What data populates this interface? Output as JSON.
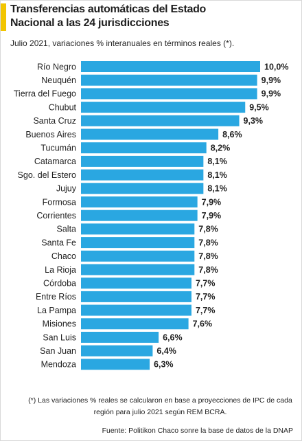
{
  "chart_data": {
    "type": "bar",
    "orientation": "horizontal",
    "title": "Transferencias automáticas del Estado Nacional a las 24 jurisdicciones",
    "subtitle": "Julio 2021, variaciones % interanuales en términos reales (*).",
    "categories": [
      "Río Negro",
      "Neuquén",
      "Tierra del Fuego",
      "Chubut",
      "Santa Cruz",
      "Buenos Aires",
      "Tucumán",
      "Catamarca",
      "Sgo. del Estero",
      "Jujuy",
      "Formosa",
      "Corrientes",
      "Salta",
      "Santa Fe",
      "Chaco",
      "La Rioja",
      "Córdoba",
      "Entre Ríos",
      "La Pampa",
      "Misiones",
      "San Luis",
      "San Juan",
      "Mendoza"
    ],
    "values": [
      10.0,
      9.9,
      9.9,
      9.5,
      9.3,
      8.6,
      8.2,
      8.1,
      8.1,
      8.1,
      7.9,
      7.9,
      7.8,
      7.8,
      7.8,
      7.8,
      7.7,
      7.7,
      7.7,
      7.6,
      6.6,
      6.4,
      6.3
    ],
    "value_labels": [
      "10,0%",
      "9,9%",
      "9,9%",
      "9,5%",
      "9,3%",
      "8,6%",
      "8,2%",
      "8,1%",
      "8,1%",
      "8,1%",
      "7,9%",
      "7,9%",
      "7,8%",
      "7,8%",
      "7,8%",
      "7,8%",
      "7,7%",
      "7,7%",
      "7,7%",
      "7,6%",
      "6,6%",
      "6,4%",
      "6,3%"
    ],
    "color": "#2aa7e1",
    "xlim": [
      4,
      10
    ],
    "footnote": "(*) Las variaciones % reales se calcularon en base a proyecciones de IPC de cada región para julio 2021 según REM BCRA.",
    "source": "Fuente: Politikon Chaco sonre la base de datos de la DNAP"
  }
}
